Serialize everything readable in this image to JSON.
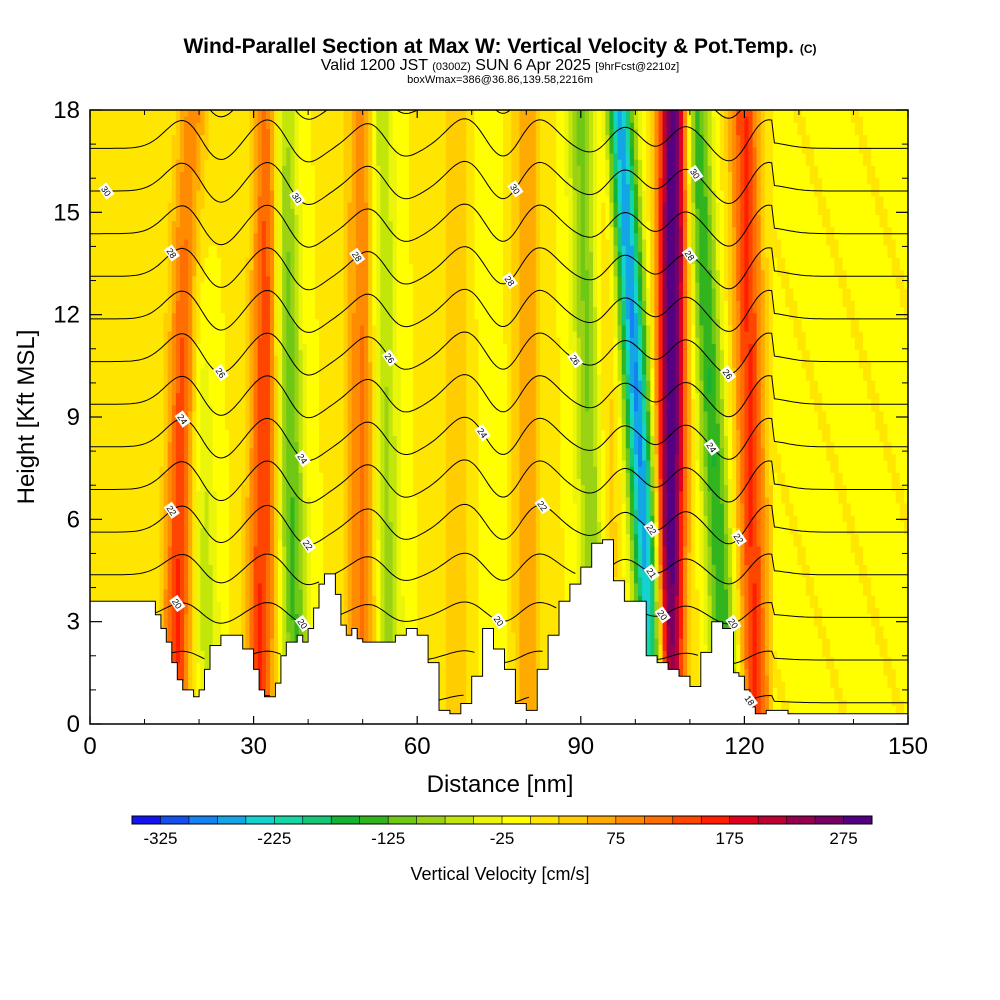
{
  "chart_data": {
    "type": "heatmap",
    "title": "Wind-Parallel Section at Max W: Vertical Velocity & Pot.Temp.",
    "title_mark": "(C)",
    "subtitle": {
      "prefix": "Valid 1200 JST",
      "utc": "(0300Z)",
      "date": "SUN 6 Apr 2025",
      "fcst": "[9hrFcst@2210z]"
    },
    "subtitle2": "boxWmax=386@36.86,139.58,2216m",
    "xlabel": "Distance [nm]",
    "ylabel": "Height [Kft MSL]",
    "xlim": [
      0,
      150
    ],
    "ylim": [
      0,
      18
    ],
    "xticks": [
      0,
      30,
      60,
      90,
      120,
      150
    ],
    "yticks": [
      0,
      3,
      6,
      9,
      12,
      15,
      18
    ],
    "colorbar": {
      "label": "Vertical Velocity [cm/s]",
      "tick_labels": [
        "-325",
        "-225",
        "-125",
        "-25",
        "75",
        "175",
        "275"
      ],
      "colors": [
        "#1414f0",
        "#1450f0",
        "#1482f0",
        "#14a5e6",
        "#14d2d2",
        "#14d7a5",
        "#14c878",
        "#14b432",
        "#32b41e",
        "#6ec814",
        "#9bd214",
        "#c3e60a",
        "#ebf50a",
        "#ffff00",
        "#ffe600",
        "#ffcd00",
        "#ffaa00",
        "#ff8c00",
        "#ff6e00",
        "#ff4600",
        "#ff1e00",
        "#e1001e",
        "#be0032",
        "#960050",
        "#780064",
        "#550082"
      ]
    },
    "terrain": {
      "x": [
        0,
        10,
        12,
        13,
        14,
        15,
        16,
        17,
        18,
        19,
        20,
        21,
        22,
        24,
        26,
        28,
        30,
        31,
        32,
        33,
        34,
        35,
        36,
        38,
        39,
        40,
        41,
        42,
        43,
        44,
        45,
        46,
        47,
        48,
        49,
        50,
        51,
        52,
        54,
        56,
        58,
        60,
        62,
        64,
        66,
        68,
        70,
        72,
        74,
        76,
        78,
        80,
        82,
        84,
        86,
        88,
        90,
        92,
        94,
        96,
        98,
        100,
        102,
        104,
        106,
        108,
        110,
        112,
        114,
        116,
        118,
        119,
        120,
        121,
        122,
        124,
        126,
        128,
        130,
        150
      ],
      "y": [
        3.6,
        3.6,
        3.2,
        2.8,
        2.4,
        1.8,
        1.3,
        1.0,
        1.0,
        0.8,
        1.0,
        1.6,
        2.3,
        2.6,
        2.6,
        2.2,
        1.6,
        1.0,
        0.8,
        0.8,
        1.2,
        2.0,
        2.4,
        2.6,
        2.4,
        2.8,
        3.4,
        4.1,
        4.4,
        4.4,
        3.8,
        2.9,
        2.6,
        2.8,
        2.5,
        2.4,
        2.4,
        2.4,
        2.4,
        2.6,
        2.8,
        2.6,
        1.8,
        0.4,
        0.3,
        0.6,
        1.4,
        2.8,
        2.2,
        1.6,
        0.6,
        0.4,
        1.6,
        2.6,
        3.6,
        4.1,
        4.6,
        5.3,
        5.4,
        4.2,
        3.6,
        3.6,
        2.0,
        1.8,
        1.6,
        1.4,
        1.1,
        2.1,
        3.0,
        2.8,
        1.5,
        1.4,
        1.0,
        0.5,
        0.3,
        0.4,
        0.4,
        0.3,
        0.3,
        0.3
      ]
    },
    "updrafts": [
      {
        "x0": 15.5,
        "x1": 18.5,
        "value": 175
      },
      {
        "x0": 31,
        "x1": 33,
        "value": 175
      },
      {
        "x0": 50,
        "x1": 50,
        "value": 125
      },
      {
        "x0": 67,
        "x1": 67,
        "value": 50
      },
      {
        "x0": 80,
        "x1": 80,
        "value": 75
      },
      {
        "x0": 95,
        "x1": 95,
        "value": 50
      },
      {
        "x0": 106,
        "x1": 107,
        "value": 350
      },
      {
        "x0": 122,
        "x1": 120,
        "value": 175
      }
    ],
    "downdrafts": [
      {
        "x0": 22,
        "x1": 18,
        "value": -75
      },
      {
        "x0": 38,
        "x1": 35,
        "value": -150
      },
      {
        "x0": 55,
        "x1": 53,
        "value": -100
      },
      {
        "x0": 75,
        "x1": 73,
        "value": -25
      },
      {
        "x0": 93,
        "x1": 90,
        "value": -125
      },
      {
        "x0": 104,
        "x1": 97,
        "value": -325
      },
      {
        "x0": 117,
        "x1": 111,
        "value": -175
      }
    ],
    "isentropes": [
      16,
      17,
      18,
      19,
      20,
      21,
      22,
      23,
      24,
      25,
      26,
      27,
      28,
      29,
      30,
      31,
      32
    ],
    "isentrope_labels": [
      {
        "value": 30,
        "x": 3,
        "theta": 30
      },
      {
        "value": 30,
        "x": 38,
        "theta": 30
      },
      {
        "value": 30,
        "x": 78,
        "theta": 30
      },
      {
        "value": 30,
        "x": 111,
        "theta": 30
      },
      {
        "value": 28,
        "x": 15,
        "theta": 28
      },
      {
        "value": 28,
        "x": 49,
        "theta": 28
      },
      {
        "value": 28,
        "x": 77,
        "theta": 28
      },
      {
        "value": 28,
        "x": 110,
        "theta": 28
      },
      {
        "value": 26,
        "x": 24,
        "theta": 26
      },
      {
        "value": 26,
        "x": 55,
        "theta": 26
      },
      {
        "value": 26,
        "x": 89,
        "theta": 26
      },
      {
        "value": 26,
        "x": 117,
        "theta": 26
      },
      {
        "value": 24,
        "x": 17,
        "theta": 24
      },
      {
        "value": 24,
        "x": 39,
        "theta": 24
      },
      {
        "value": 24,
        "x": 72,
        "theta": 24
      },
      {
        "value": 24,
        "x": 114,
        "theta": 24
      },
      {
        "value": 22,
        "x": 15,
        "theta": 22
      },
      {
        "value": 22,
        "x": 40,
        "theta": 22
      },
      {
        "value": 22,
        "x": 83,
        "theta": 22
      },
      {
        "value": 22,
        "x": 119,
        "theta": 22
      },
      {
        "value": 21,
        "x": 103,
        "theta": 21
      },
      {
        "value": 20,
        "x": 16,
        "theta": 20
      },
      {
        "value": 20,
        "x": 39,
        "theta": 20
      },
      {
        "value": 20,
        "x": 75,
        "theta": 20
      },
      {
        "value": 20,
        "x": 105,
        "theta": 20
      },
      {
        "value": 20,
        "x": 118,
        "theta": 20
      },
      {
        "value": 22,
        "x": 103,
        "theta": 22
      },
      {
        "value": 18,
        "x": 52,
        "theta": 18
      },
      {
        "value": 18,
        "x": 121,
        "theta": 18
      }
    ]
  }
}
